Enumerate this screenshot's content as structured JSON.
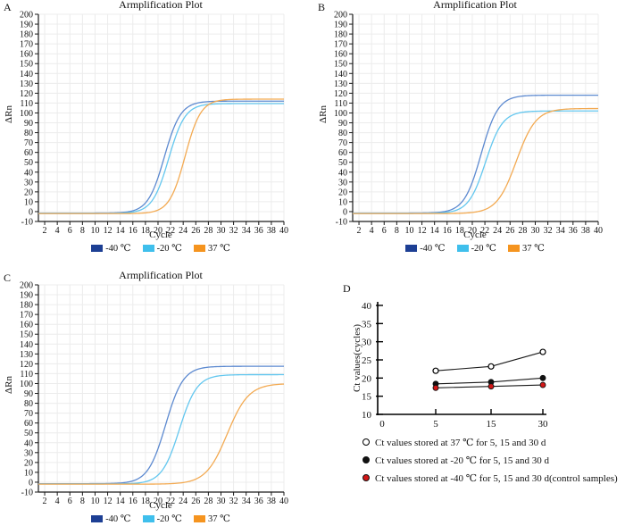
{
  "figure": {
    "background": "#ffffff",
    "grid_color": "#ececec",
    "axis_color": "#1a1a1a"
  },
  "chart_data": [
    {
      "panel": "A",
      "type": "line",
      "title": "Armplification Plot",
      "xlabel": "Cycle",
      "ylabel": "ΔRn",
      "xlim": [
        1,
        40
      ],
      "ylim": [
        -10,
        200
      ],
      "xticks": [
        2,
        4,
        6,
        8,
        10,
        12,
        14,
        16,
        18,
        20,
        22,
        24,
        26,
        28,
        30,
        32,
        34,
        36,
        38,
        40
      ],
      "yticks": [
        -10,
        0,
        10,
        20,
        30,
        40,
        50,
        60,
        70,
        80,
        90,
        100,
        110,
        120,
        130,
        140,
        150,
        160,
        170,
        180,
        190,
        200
      ],
      "grid": true,
      "legend_position": "bottom",
      "series": [
        {
          "name": "-40 ℃",
          "legend_color": "#1d3f94",
          "line_color": "#5d8ad0",
          "sigmoid": {
            "baseline": -1.5,
            "plateau": 112.0,
            "midpoint_cycle": 21.0,
            "steepness": 1.3
          }
        },
        {
          "name": "-20 ℃",
          "legend_color": "#3fbfec",
          "line_color": "#63c7ef",
          "sigmoid": {
            "baseline": -1.8,
            "plateau": 109.5,
            "midpoint_cycle": 21.7,
            "steepness": 1.3
          }
        },
        {
          "name": "37 ℃",
          "legend_color": "#f5941f",
          "line_color": "#f3aa52",
          "sigmoid": {
            "baseline": -2.0,
            "plateau": 114.0,
            "midpoint_cycle": 24.3,
            "steepness": 1.25
          }
        }
      ]
    },
    {
      "panel": "B",
      "type": "line",
      "title": "Armplification Plot",
      "xlabel": "Cycle",
      "ylabel": "ΔRn",
      "xlim": [
        1,
        40
      ],
      "ylim": [
        -10,
        200
      ],
      "xticks": [
        2,
        4,
        6,
        8,
        10,
        12,
        14,
        16,
        18,
        20,
        22,
        24,
        26,
        28,
        30,
        32,
        34,
        36,
        38,
        40
      ],
      "yticks": [
        -10,
        0,
        10,
        20,
        30,
        40,
        50,
        60,
        70,
        80,
        90,
        100,
        110,
        120,
        130,
        140,
        150,
        160,
        170,
        180,
        190,
        200
      ],
      "grid": true,
      "legend_position": "bottom",
      "series": [
        {
          "name": "-40 ℃",
          "legend_color": "#1d3f94",
          "line_color": "#5d8ad0",
          "sigmoid": {
            "baseline": -1.5,
            "plateau": 118.0,
            "midpoint_cycle": 21.4,
            "steepness": 1.35
          }
        },
        {
          "name": "-20 ℃",
          "legend_color": "#3fbfec",
          "line_color": "#63c7ef",
          "sigmoid": {
            "baseline": -1.8,
            "plateau": 102.0,
            "midpoint_cycle": 22.1,
            "steepness": 1.35
          }
        },
        {
          "name": "37 ℃",
          "legend_color": "#f5941f",
          "line_color": "#f3aa52",
          "sigmoid": {
            "baseline": -2.0,
            "plateau": 104.5,
            "midpoint_cycle": 27.0,
            "steepness": 1.55
          }
        }
      ]
    },
    {
      "panel": "C",
      "type": "line",
      "title": "Armplification Plot",
      "xlabel": "Cycle",
      "ylabel": "ΔRn",
      "xlim": [
        1,
        40
      ],
      "ylim": [
        -10,
        200
      ],
      "xticks": [
        2,
        4,
        6,
        8,
        10,
        12,
        14,
        16,
        18,
        20,
        22,
        24,
        26,
        28,
        30,
        32,
        34,
        36,
        38,
        40
      ],
      "yticks": [
        -10,
        0,
        10,
        20,
        30,
        40,
        50,
        60,
        70,
        80,
        90,
        100,
        110,
        120,
        130,
        140,
        150,
        160,
        170,
        180,
        190,
        200
      ],
      "grid": true,
      "legend_position": "bottom",
      "series": [
        {
          "name": "-40 ℃",
          "legend_color": "#1d3f94",
          "line_color": "#5d8ad0",
          "sigmoid": {
            "baseline": -1.5,
            "plateau": 117.5,
            "midpoint_cycle": 21.2,
            "steepness": 1.4
          }
        },
        {
          "name": "-20 ℃",
          "legend_color": "#3fbfec",
          "line_color": "#63c7ef",
          "sigmoid": {
            "baseline": -1.8,
            "plateau": 109.0,
            "midpoint_cycle": 23.4,
            "steepness": 1.4
          }
        },
        {
          "name": "37 ℃",
          "legend_color": "#f5941f",
          "line_color": "#f3aa52",
          "sigmoid": {
            "baseline": -2.0,
            "plateau": 100.0,
            "midpoint_cycle": 31.0,
            "steepness": 1.7
          }
        }
      ]
    },
    {
      "panel": "D",
      "type": "scatter-line",
      "title": "",
      "xlabel": "",
      "ylabel": "Ct values(cycles)",
      "ylim": [
        10,
        40
      ],
      "yticks": [
        10,
        15,
        20,
        25,
        30,
        35,
        40
      ],
      "xtick_labels": [
        "0",
        "5",
        "15",
        "30"
      ],
      "x_days": [
        5,
        15,
        30
      ],
      "grid": false,
      "legend_position": "bottom-left",
      "series": [
        {
          "name": "Ct values stored at 37 ℃ for 5, 15 and 30 d",
          "marker": "open-circle",
          "marker_fill": "#ffffff",
          "marker_stroke": "#000000",
          "line_color": "#1a1a1a",
          "values": [
            22.0,
            23.2,
            27.2
          ]
        },
        {
          "name": "Ct values stored at -20 ℃ for 5, 15 and 30 d",
          "marker": "filled-circle",
          "marker_fill": "#111111",
          "marker_stroke": "#111111",
          "line_color": "#1a1a1a",
          "values": [
            18.4,
            18.9,
            20.0
          ]
        },
        {
          "name": "Ct values stored at -40 ℃ for 5, 15 and 30 d(control samples)",
          "marker": "filled-circle",
          "marker_fill": "#d31717",
          "marker_stroke": "#111111",
          "line_color": "#1a1a1a",
          "values": [
            17.3,
            17.7,
            18.1
          ]
        }
      ]
    }
  ]
}
